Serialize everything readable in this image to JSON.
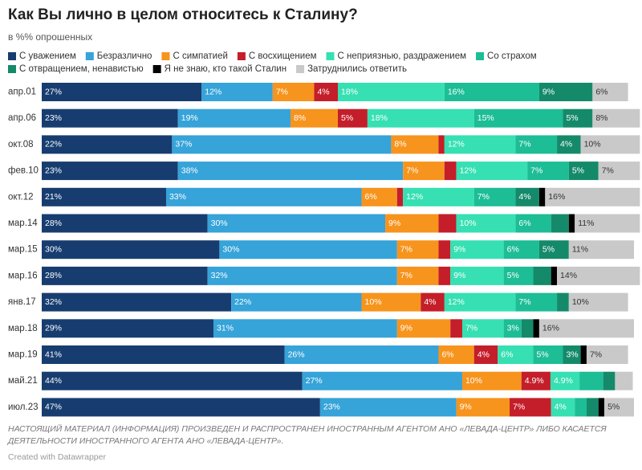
{
  "chart_data": {
    "type": "stacked_bar_horizontal",
    "title": "Как Вы лично в целом относитесь к Сталину?",
    "subtitle": "в %% опрошенных",
    "categories": [
      "апр.01",
      "апр.06",
      "окт.08",
      "фев.10",
      "окт.12",
      "мар.14",
      "мар.15",
      "мар.16",
      "янв.17",
      "мар.18",
      "мар.19",
      "май.21",
      "июл.23"
    ],
    "xlim": [
      0,
      100
    ],
    "series": [
      {
        "name": "С уважением",
        "color": "#173d70",
        "label_color": "#ffffff",
        "values": [
          27,
          23,
          22,
          23,
          21,
          28,
          30,
          28,
          32,
          29,
          41,
          44,
          47
        ],
        "value_labels": [
          "27%",
          "23%",
          "22%",
          "23%",
          "21%",
          "28%",
          "30%",
          "28%",
          "32%",
          "29%",
          "41%",
          "44%",
          "47%"
        ]
      },
      {
        "name": "Безразлично",
        "color": "#36a3d9",
        "label_color": "#ffffff",
        "values": [
          12,
          19,
          37,
          38,
          33,
          30,
          30,
          32,
          22,
          31,
          26,
          27,
          23
        ],
        "value_labels": [
          "12%",
          "19%",
          "37%",
          "38%",
          "33%",
          "30%",
          "30%",
          "32%",
          "22%",
          "31%",
          "26%",
          "27%",
          "23%"
        ]
      },
      {
        "name": "С симпатией",
        "color": "#f7941d",
        "label_color": "#ffffff",
        "values": [
          7,
          8,
          8,
          7,
          6,
          9,
          7,
          7,
          10,
          9,
          6,
          10,
          9
        ],
        "value_labels": [
          "7%",
          "8%",
          "8%",
          "7%",
          "6%",
          "9%",
          "7%",
          "7%",
          "10%",
          "9%",
          "6%",
          "10%",
          "9%"
        ]
      },
      {
        "name": "С восхищением",
        "color": "#c41e2a",
        "label_color": "#ffffff",
        "values": [
          4,
          5,
          1,
          2,
          1,
          3,
          2,
          2,
          4,
          2,
          4,
          4.9,
          7
        ],
        "value_labels": [
          "4%",
          "5%",
          null,
          null,
          null,
          null,
          null,
          null,
          "4%",
          null,
          "4%",
          "4.9%",
          "7%"
        ]
      },
      {
        "name": "С неприязнью, раздражением",
        "color": "#36e0b2",
        "label_color": "#ffffff",
        "values": [
          18,
          18,
          12,
          12,
          12,
          10,
          9,
          9,
          12,
          7,
          6,
          4.9,
          4
        ],
        "value_labels": [
          "18%",
          "18%",
          "12%",
          "12%",
          "12%",
          "10%",
          "9%",
          "9%",
          "12%",
          "7%",
          "6%",
          "4.9%",
          "4%"
        ]
      },
      {
        "name": "Со страхом",
        "color": "#1dbd96",
        "label_color": "#ffffff",
        "values": [
          16,
          15,
          7,
          7,
          7,
          6,
          6,
          5,
          7,
          3,
          5,
          4,
          2
        ],
        "value_labels": [
          "16%",
          "15%",
          "7%",
          "7%",
          "7%",
          "6%",
          "6%",
          "5%",
          "7%",
          "3%",
          "5%",
          null,
          null
        ]
      },
      {
        "name": "С отвращением, ненавистью",
        "color": "#148a6a",
        "label_color": "#ffffff",
        "values": [
          9,
          5,
          4,
          5,
          4,
          3,
          5,
          3,
          2,
          2,
          3,
          2,
          2
        ],
        "value_labels": [
          "9%",
          "5%",
          "4%",
          "5%",
          "4%",
          null,
          "5%",
          null,
          null,
          null,
          "3%",
          null,
          null
        ]
      },
      {
        "name": "Я не знаю, кто такой Сталин",
        "color": "#000000",
        "label_color": "#ffffff",
        "values": [
          null,
          null,
          null,
          null,
          1,
          1,
          null,
          1,
          null,
          1,
          1,
          null,
          1
        ],
        "value_labels": [
          null,
          null,
          null,
          null,
          null,
          null,
          null,
          null,
          null,
          null,
          null,
          null,
          null
        ]
      },
      {
        "name": "Затруднились ответить",
        "color": "#c9c9c9",
        "label_color": "#333333",
        "values": [
          6,
          8,
          10,
          7,
          16,
          11,
          11,
          14,
          10,
          16,
          7,
          3,
          5
        ],
        "value_labels": [
          "6%",
          "8%",
          "10%",
          "7%",
          "16%",
          "11%",
          "11%",
          "14%",
          "10%",
          "16%",
          "7%",
          null,
          "5%"
        ]
      }
    ],
    "note": [
      "НАСТОЯЩИЙ МАТЕРИАЛ (ИНФОРМАЦИЯ) ПРОИЗВЕДЕН И РАСПРОСТРАНЕН ИНОСТРАННЫМ АГЕНТОМ АНО «ЛЕВАДА-ЦЕНТР» ЛИБО КАСАЕТСЯ",
      "ДЕЯТЕЛЬНОСТИ ИНОСТРАННОГО АГЕНТА АНО «ЛЕВАДА-ЦЕНТР»."
    ],
    "credit": "Created with Datawrapper"
  }
}
